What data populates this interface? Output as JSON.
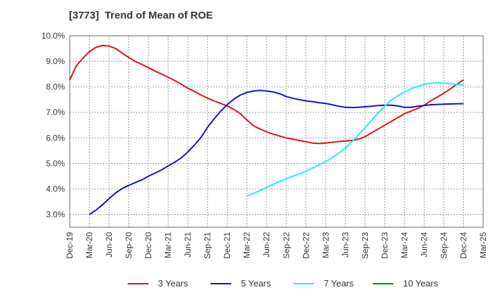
{
  "chart_data": {
    "type": "line",
    "title": "[3773]  Trend of Mean of ROE",
    "xlabel": "",
    "ylabel": "",
    "x_ticks": [
      "Dec-19",
      "Mar-20",
      "Jun-20",
      "Sep-20",
      "Dec-20",
      "Mar-21",
      "Jun-21",
      "Sep-21",
      "Dec-21",
      "Mar-22",
      "Jun-22",
      "Sep-22",
      "Dec-22",
      "Mar-23",
      "Jun-23",
      "Sep-23",
      "Dec-23",
      "Mar-24",
      "Jun-24",
      "Sep-24",
      "Dec-24",
      "Mar-25"
    ],
    "y_ticks": [
      "3.0%",
      "4.0%",
      "5.0%",
      "6.0%",
      "7.0%",
      "8.0%",
      "9.0%",
      "10.0%"
    ],
    "ylim": [
      2.5,
      10.0
    ],
    "grid": true,
    "legend_position": "bottom",
    "series": [
      {
        "name": "3 Years",
        "color": "#dd1111",
        "x": [
          "Dec-19",
          "Jan-20",
          "Feb-20",
          "Mar-20",
          "Apr-20",
          "May-20",
          "Jun-20",
          "Jul-20",
          "Aug-20",
          "Sep-20",
          "Oct-20",
          "Nov-20",
          "Dec-20",
          "Jan-21",
          "Feb-21",
          "Mar-21",
          "Apr-21",
          "May-21",
          "Jun-21",
          "Jul-21",
          "Aug-21",
          "Sep-21",
          "Oct-21",
          "Nov-21",
          "Dec-21",
          "Jan-22",
          "Feb-22",
          "Mar-22",
          "Apr-22",
          "May-22",
          "Jun-22",
          "Jul-22",
          "Aug-22",
          "Sep-22",
          "Oct-22",
          "Nov-22",
          "Dec-22",
          "Jan-23",
          "Feb-23",
          "Mar-23",
          "Apr-23",
          "May-23",
          "Jun-23",
          "Jul-23",
          "Aug-23",
          "Sep-23",
          "Oct-23",
          "Nov-23",
          "Dec-23",
          "Jan-24",
          "Feb-24",
          "Mar-24",
          "Apr-24",
          "May-24",
          "Jun-24",
          "Jul-24",
          "Aug-24",
          "Sep-24",
          "Oct-24",
          "Nov-24",
          "Dec-24"
        ],
        "values": [
          8.28,
          8.82,
          9.12,
          9.38,
          9.55,
          9.62,
          9.6,
          9.5,
          9.32,
          9.15,
          9.0,
          8.88,
          8.75,
          8.62,
          8.5,
          8.38,
          8.25,
          8.1,
          7.95,
          7.82,
          7.68,
          7.56,
          7.45,
          7.35,
          7.25,
          7.12,
          6.95,
          6.7,
          6.48,
          6.35,
          6.24,
          6.15,
          6.07,
          6.0,
          5.95,
          5.9,
          5.85,
          5.8,
          5.78,
          5.8,
          5.83,
          5.86,
          5.88,
          5.9,
          5.95,
          6.05,
          6.2,
          6.35,
          6.5,
          6.65,
          6.8,
          6.95,
          7.05,
          7.15,
          7.28,
          7.45,
          7.6,
          7.75,
          7.92,
          8.1,
          8.28
        ]
      },
      {
        "name": "5 Years",
        "color": "#1111cc",
        "x": [
          "Mar-20",
          "Apr-20",
          "May-20",
          "Jun-20",
          "Jul-20",
          "Aug-20",
          "Sep-20",
          "Oct-20",
          "Nov-20",
          "Dec-20",
          "Jan-21",
          "Feb-21",
          "Mar-21",
          "Apr-21",
          "May-21",
          "Jun-21",
          "Jul-21",
          "Aug-21",
          "Sep-21",
          "Oct-21",
          "Nov-21",
          "Dec-21",
          "Jan-22",
          "Feb-22",
          "Mar-22",
          "Apr-22",
          "May-22",
          "Jun-22",
          "Jul-22",
          "Aug-22",
          "Sep-22",
          "Oct-22",
          "Nov-22",
          "Dec-22",
          "Jan-23",
          "Feb-23",
          "Mar-23",
          "Apr-23",
          "May-23",
          "Jun-23",
          "Jul-23",
          "Aug-23",
          "Sep-23",
          "Oct-23",
          "Nov-23",
          "Dec-23",
          "Jan-24",
          "Feb-24",
          "Mar-24",
          "Apr-24",
          "May-24",
          "Jun-24",
          "Jul-24",
          "Aug-24",
          "Sep-24",
          "Oct-24",
          "Nov-24",
          "Dec-24"
        ],
        "values": [
          3.0,
          3.17,
          3.38,
          3.62,
          3.85,
          4.02,
          4.14,
          4.25,
          4.36,
          4.5,
          4.62,
          4.75,
          4.9,
          5.05,
          5.22,
          5.45,
          5.72,
          6.02,
          6.42,
          6.75,
          7.05,
          7.3,
          7.52,
          7.68,
          7.78,
          7.84,
          7.86,
          7.84,
          7.8,
          7.73,
          7.62,
          7.55,
          7.5,
          7.45,
          7.42,
          7.38,
          7.35,
          7.3,
          7.24,
          7.2,
          7.19,
          7.2,
          7.22,
          7.24,
          7.27,
          7.28,
          7.28,
          7.25,
          7.2,
          7.2,
          7.24,
          7.27,
          7.3,
          7.31,
          7.32,
          7.33,
          7.34,
          7.34
        ]
      },
      {
        "name": "7 Years",
        "color": "#22eeee",
        "x": [
          "Mar-22",
          "Apr-22",
          "May-22",
          "Jun-22",
          "Jul-22",
          "Aug-22",
          "Sep-22",
          "Oct-22",
          "Nov-22",
          "Dec-22",
          "Jan-23",
          "Feb-23",
          "Mar-23",
          "Apr-23",
          "May-23",
          "Jun-23",
          "Jul-23",
          "Aug-23",
          "Sep-23",
          "Oct-23",
          "Nov-23",
          "Dec-23",
          "Jan-24",
          "Feb-24",
          "Mar-24",
          "Apr-24",
          "May-24",
          "Jun-24",
          "Jul-24",
          "Aug-24",
          "Sep-24",
          "Oct-24",
          "Nov-24",
          "Dec-24"
        ],
        "values": [
          3.72,
          3.82,
          3.94,
          4.06,
          4.18,
          4.3,
          4.4,
          4.5,
          4.6,
          4.7,
          4.82,
          4.95,
          5.08,
          5.22,
          5.4,
          5.6,
          5.85,
          6.12,
          6.4,
          6.7,
          6.98,
          7.25,
          7.48,
          7.65,
          7.8,
          7.92,
          8.02,
          8.1,
          8.14,
          8.16,
          8.15,
          8.12,
          8.09,
          8.08
        ]
      },
      {
        "name": "10 Years",
        "color": "#118811",
        "x": [],
        "values": []
      }
    ]
  }
}
